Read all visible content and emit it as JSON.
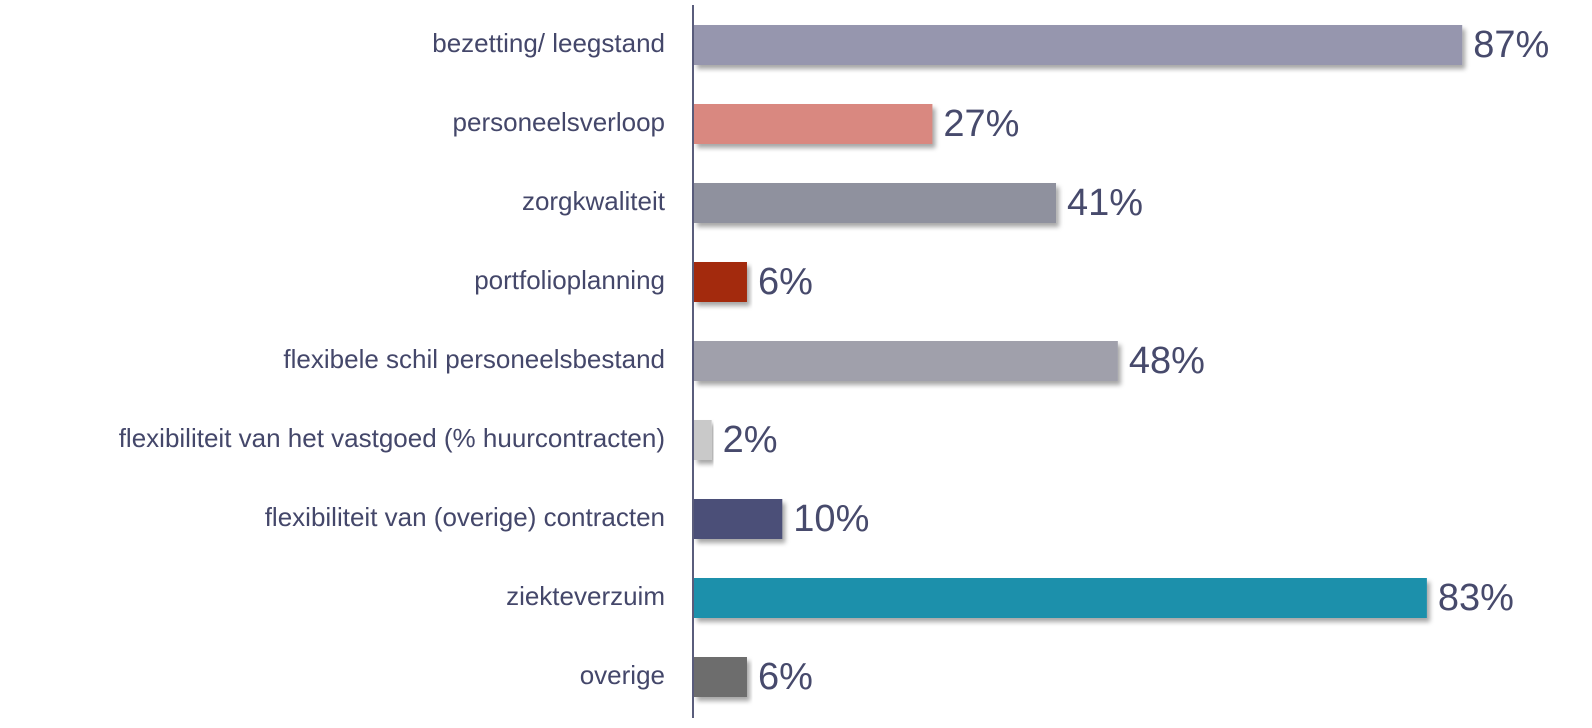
{
  "chart_data": {
    "type": "hbar",
    "categories": [
      "bezetting/ leegstand",
      "personeelsverloop",
      "zorgkwaliteit",
      "portfolioplanning",
      "flexibele schil personeelsbestand",
      "flexibiliteit van het vastgoed (% huurcontracten)",
      "flexibiliteit van (overige) contracten",
      "ziekteverzuim",
      "overige"
    ],
    "values": [
      87,
      27,
      41,
      6,
      48,
      2,
      10,
      83,
      6
    ],
    "value_labels": [
      "87%",
      "27%",
      "41%",
      "6%",
      "48%",
      "2%",
      "10%",
      "83%",
      "6%"
    ],
    "colors": [
      "#9696ae",
      "#d98880",
      "#8f919e",
      "#a32a0e",
      "#a0a0ab",
      "#c9c9c9",
      "#4c4f78",
      "#1f90ab",
      "#6d6d6d"
    ],
    "xlim": [
      0,
      100
    ]
  }
}
